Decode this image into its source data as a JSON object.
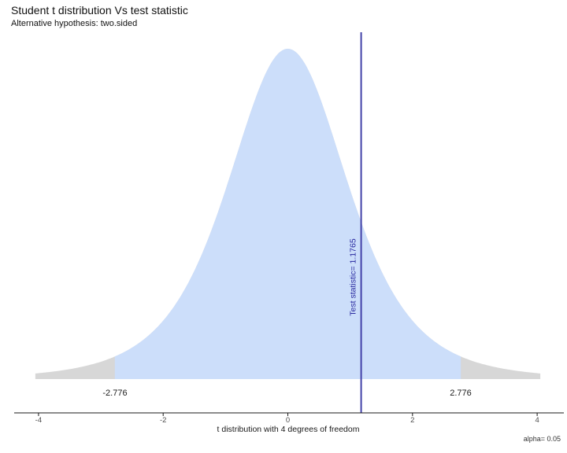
{
  "header": {
    "title": "Student t distribution Vs test statistic",
    "subtitle": "Alternative hypothesis: two.sided"
  },
  "chart_data": {
    "type": "area",
    "distribution": "Student t",
    "df": 4,
    "peak_density": 0.375,
    "test_statistic": 1.1765,
    "test_statistic_label": "Test statistic= 1.1765",
    "alpha": 0.05,
    "alpha_label": "alpha= 0.05",
    "critical_values": [
      -2.776,
      2.776
    ],
    "critical_value_labels": [
      "-2.776",
      "2.776"
    ],
    "x_ticks": [
      -4,
      -2,
      0,
      2,
      4
    ],
    "x_tick_labels": [
      "-4",
      "-2",
      "0",
      "2",
      "4"
    ],
    "xlim": [
      -4.05,
      4.05
    ],
    "xlabel": "t distribution with 4 degrees of freedom",
    "grid": false,
    "legend": "none",
    "colors": {
      "fill_center": "#CCDEFA",
      "fill_tails": "#D7D7D7",
      "test_stat_line": "#4343A8",
      "test_stat_text": "#2A2AA0",
      "axis": "#1a1a1a",
      "tick_label": "#4d4d4d"
    }
  }
}
